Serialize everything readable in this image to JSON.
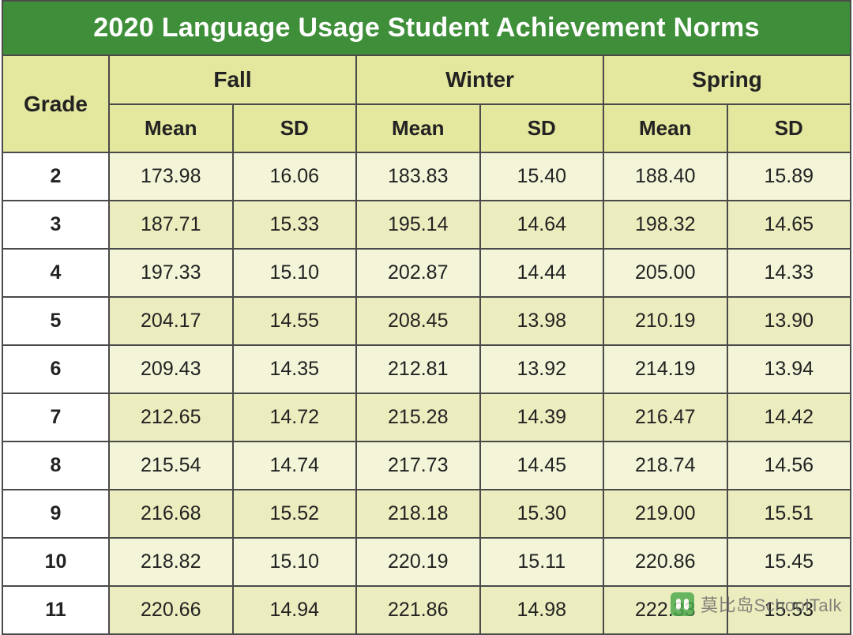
{
  "table": {
    "type": "table",
    "title": "2020 Language Usage Student Achievement Norms",
    "title_bg": "#3f8f3a",
    "title_color": "#ffffff",
    "title_fontsize": 34,
    "header_bg": "#e4e79e",
    "row_even_bg": "#f4f5d8",
    "row_odd_bg": "#ecedbf",
    "border_color": "#4a4a4a",
    "text_color": "#222222",
    "body_fontsize": 25,
    "header_fontsize": 26,
    "season_fontsize": 28,
    "grade_label": "Grade",
    "seasons": [
      "Fall",
      "Winter",
      "Spring"
    ],
    "sub_columns": [
      "Mean",
      "SD"
    ],
    "col_widths_pct": [
      12.5,
      14.6,
      14.6,
      14.6,
      14.6,
      14.6,
      14.5
    ],
    "rows": [
      {
        "grade": "2",
        "fall_mean": "173.98",
        "fall_sd": "16.06",
        "winter_mean": "183.83",
        "winter_sd": "15.40",
        "spring_mean": "188.40",
        "spring_sd": "15.89"
      },
      {
        "grade": "3",
        "fall_mean": "187.71",
        "fall_sd": "15.33",
        "winter_mean": "195.14",
        "winter_sd": "14.64",
        "spring_mean": "198.32",
        "spring_sd": "14.65"
      },
      {
        "grade": "4",
        "fall_mean": "197.33",
        "fall_sd": "15.10",
        "winter_mean": "202.87",
        "winter_sd": "14.44",
        "spring_mean": "205.00",
        "spring_sd": "14.33"
      },
      {
        "grade": "5",
        "fall_mean": "204.17",
        "fall_sd": "14.55",
        "winter_mean": "208.45",
        "winter_sd": "13.98",
        "spring_mean": "210.19",
        "spring_sd": "13.90"
      },
      {
        "grade": "6",
        "fall_mean": "209.43",
        "fall_sd": "14.35",
        "winter_mean": "212.81",
        "winter_sd": "13.92",
        "spring_mean": "214.19",
        "spring_sd": "13.94"
      },
      {
        "grade": "7",
        "fall_mean": "212.65",
        "fall_sd": "14.72",
        "winter_mean": "215.28",
        "winter_sd": "14.39",
        "spring_mean": "216.47",
        "spring_sd": "14.42"
      },
      {
        "grade": "8",
        "fall_mean": "215.54",
        "fall_sd": "14.74",
        "winter_mean": "217.73",
        "winter_sd": "14.45",
        "spring_mean": "218.74",
        "spring_sd": "14.56"
      },
      {
        "grade": "9",
        "fall_mean": "216.68",
        "fall_sd": "15.52",
        "winter_mean": "218.18",
        "winter_sd": "15.30",
        "spring_mean": "219.00",
        "spring_sd": "15.51"
      },
      {
        "grade": "10",
        "fall_mean": "218.82",
        "fall_sd": "15.10",
        "winter_mean": "220.19",
        "winter_sd": "15.11",
        "spring_mean": "220.86",
        "spring_sd": "15.45"
      },
      {
        "grade": "11",
        "fall_mean": "220.66",
        "fall_sd": "14.94",
        "winter_mean": "221.86",
        "winter_sd": "14.98",
        "spring_mean": "222.33",
        "spring_sd": "15.53"
      }
    ]
  },
  "watermark": {
    "text": "莫比岛SchoolTalk",
    "color": "#6b6b6b",
    "icon_bg": "#4aa84a"
  }
}
